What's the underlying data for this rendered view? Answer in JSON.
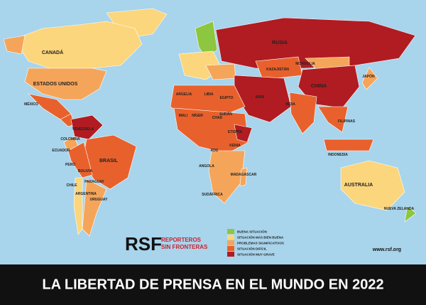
{
  "logo": {
    "mark": "RSF",
    "line1": "REPORTEROS",
    "line2": "SIN FRONTERAS"
  },
  "url": "www.rsf.org",
  "title": "LA LIBERTAD DE PRENSA EN EL MUNDO EN 2022",
  "legend": [
    {
      "label": "BUENA SITUACIÓN",
      "color": "#8dc63f"
    },
    {
      "label": "SITUACIÓN MÁS BIEN BUENA",
      "color": "#fcd67c"
    },
    {
      "label": "PROBLEMAS SIGNIFICATIVOS",
      "color": "#f5a55a"
    },
    {
      "label": "SITUACIÓN DIFÍCIL",
      "color": "#e8612c"
    },
    {
      "label": "SITUACIÓN MUY GRAVE",
      "color": "#b01c22"
    }
  ],
  "countries": [
    "CANADÁ",
    "ESTADOS UNIDOS",
    "MÉXICO",
    "BRASIL",
    "PERÚ",
    "BOLIVIA",
    "ARGENTINA",
    "CHILE",
    "COLOMBIA",
    "VENEZUELA",
    "ECUADOR",
    "URUGUAY",
    "PARAGUAY",
    "RUSIA",
    "CHINA",
    "INDIA",
    "MONGOLIA",
    "KAZAJISTÁN",
    "IRÁN",
    "EGIPTO",
    "ARGELIA",
    "LIBIA",
    "MALI",
    "NÍGER",
    "CHAD",
    "SUDÁN",
    "ETIOPÍA",
    "KENIA",
    "RDC",
    "ANGOLA",
    "SUDÁFRICA",
    "MADAGASCAR",
    "AUSTRALIA",
    "INDONESIA",
    "FILIPINAS",
    "JAPÓN",
    "NUEVA ZELANDA"
  ]
}
